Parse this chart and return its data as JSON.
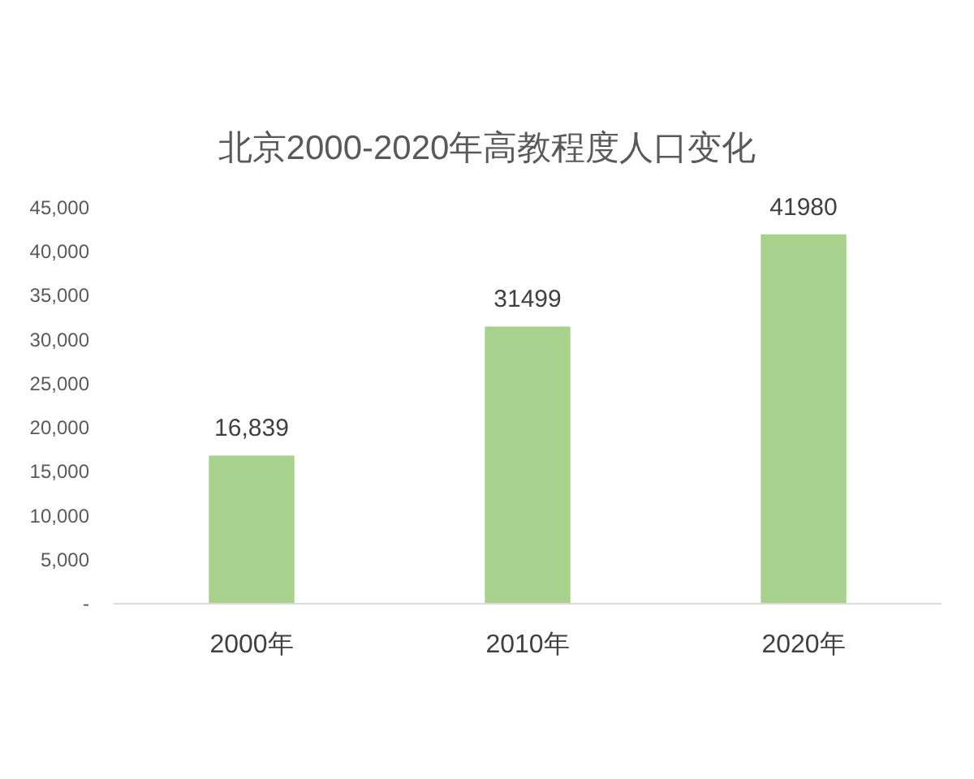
{
  "chart_data": {
    "type": "bar",
    "title": "北京2000-2020年高教程度人口变化",
    "categories": [
      "2000年",
      "2010年",
      "2020年"
    ],
    "values": [
      16839,
      31499,
      41980
    ],
    "value_labels": [
      "16,839",
      "31499",
      "41980"
    ],
    "color": "#a9d18e",
    "ylim": [
      0,
      45000
    ],
    "yticks": [
      {
        "value": 0,
        "label": "-"
      },
      {
        "value": 5000,
        "label": "5,000"
      },
      {
        "value": 10000,
        "label": "10,000"
      },
      {
        "value": 15000,
        "label": "15,000"
      },
      {
        "value": 20000,
        "label": "20,000"
      },
      {
        "value": 25000,
        "label": "25,000"
      },
      {
        "value": 30000,
        "label": "30,000"
      },
      {
        "value": 35000,
        "label": "35,000"
      },
      {
        "value": 40000,
        "label": "40,000"
      },
      {
        "value": 45000,
        "label": "45,000"
      }
    ]
  }
}
